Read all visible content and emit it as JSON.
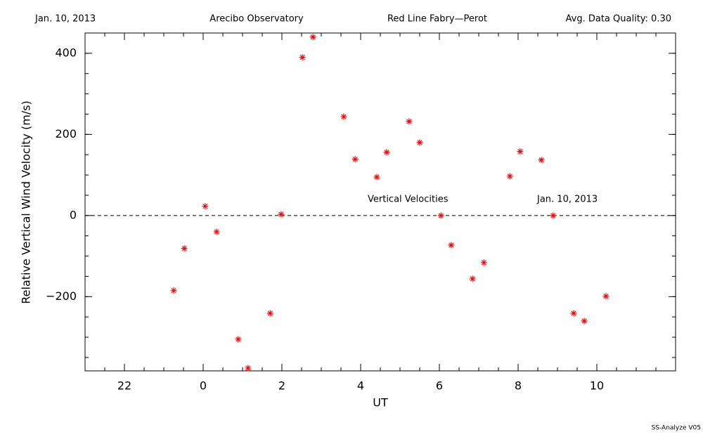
{
  "header": {
    "date": "Jan. 10, 2013",
    "site": "Arecibo Observatory",
    "instrument": "Red Line Fabry—Perot",
    "quality": "Avg. Data Quality: 0.30"
  },
  "chart_data": {
    "type": "scatter",
    "xlabel": "UT",
    "ylabel": "Relative Vertical Wind Velocity (m/s)",
    "annotations": [
      "Vertical Velocities",
      "Jan. 10, 2013"
    ],
    "color": "#ff0000",
    "zero_line": true,
    "xlim": [
      -3,
      12
    ],
    "xticks": [
      {
        "value": -2,
        "label": "22"
      },
      0,
      2,
      4,
      6,
      8,
      10
    ],
    "ylim": [
      -383,
      450
    ],
    "yticks": [
      {
        "value": -200,
        "label": "−200"
      },
      0,
      200,
      400
    ],
    "x": [
      -0.75,
      -0.48,
      0.05,
      0.34,
      0.89,
      1.14,
      1.7,
      1.98,
      2.52,
      2.79,
      3.57,
      3.86,
      4.41,
      4.66,
      5.23,
      5.5,
      6.04,
      6.3,
      6.84,
      7.13,
      7.79,
      8.05,
      8.59,
      8.89,
      9.41,
      9.68,
      10.23
    ],
    "values": [
      -185,
      -81,
      23,
      -40,
      -305,
      -376,
      -241,
      3,
      390,
      440,
      244,
      139,
      95,
      156,
      232,
      180,
      0,
      -73,
      -156,
      -116,
      97,
      158,
      137,
      0,
      -241,
      -260,
      -199
    ]
  },
  "footer": "SS-Analyze V05"
}
